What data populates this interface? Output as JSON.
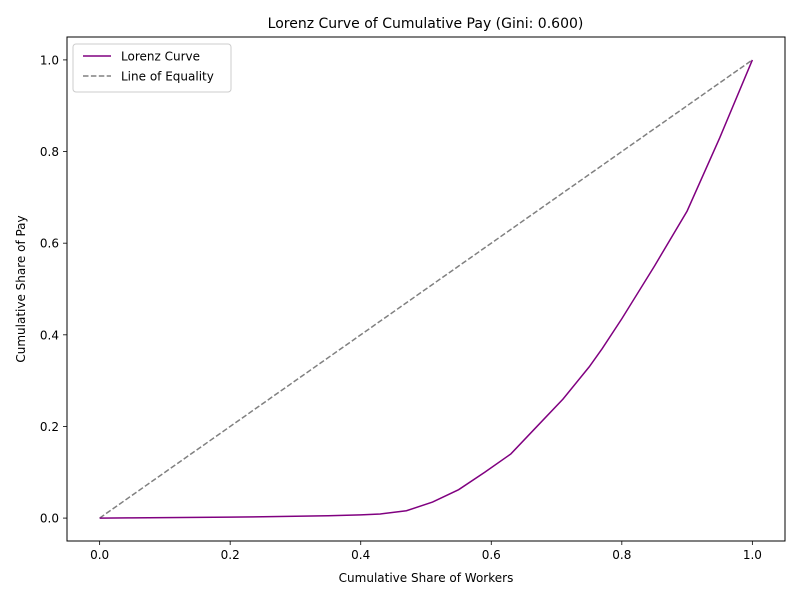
{
  "chart_data": {
    "type": "line",
    "title": "Lorenz Curve of Cumulative Pay (Gini: 0.600)",
    "xlabel": "Cumulative Share of Workers",
    "ylabel": "Cumulative Share of Pay",
    "xlim": [
      -0.05,
      1.05
    ],
    "ylim": [
      -0.05,
      1.05
    ],
    "x_ticks": [
      "0.0",
      "0.2",
      "0.4",
      "0.6",
      "0.8",
      "1.0"
    ],
    "y_ticks": [
      "0.0",
      "0.2",
      "0.4",
      "0.6",
      "0.8",
      "1.0"
    ],
    "grid": false,
    "legend": "top-left",
    "series": [
      {
        "name": "Lorenz Curve",
        "color": "#800080",
        "style": "solid",
        "x": [
          0.0,
          0.05,
          0.1,
          0.15,
          0.2,
          0.25,
          0.3,
          0.35,
          0.4,
          0.43,
          0.47,
          0.51,
          0.55,
          0.59,
          0.63,
          0.67,
          0.71,
          0.75,
          0.77,
          0.8,
          0.85,
          0.9,
          0.95,
          1.0
        ],
        "y": [
          0.0,
          0.0005,
          0.001,
          0.0015,
          0.002,
          0.003,
          0.004,
          0.005,
          0.007,
          0.009,
          0.016,
          0.035,
          0.062,
          0.1,
          0.14,
          0.2,
          0.26,
          0.33,
          0.37,
          0.435,
          0.55,
          0.67,
          0.83,
          1.0
        ]
      },
      {
        "name": "Line of Equality",
        "color": "#808080",
        "style": "dashed",
        "x": [
          0.0,
          1.0
        ],
        "y": [
          0.0,
          1.0
        ]
      }
    ]
  }
}
